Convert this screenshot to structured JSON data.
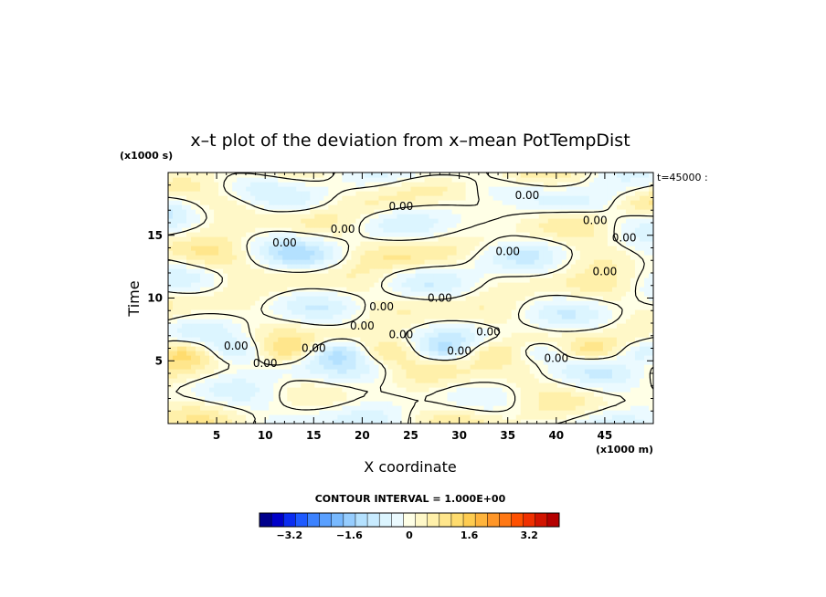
{
  "chart_data": {
    "type": "heatmap",
    "title": "x–t plot of the deviation from x–mean PotTempDist",
    "xlabel": "X coordinate",
    "ylabel": "Time",
    "x_unit": "(x1000 m)",
    "y_unit": "(x1000 s)",
    "time_stamp": "t=45000 :",
    "xlim": [
      0,
      50
    ],
    "ylim": [
      0,
      20
    ],
    "x_ticks": [
      5,
      10,
      15,
      20,
      25,
      30,
      35,
      40,
      45
    ],
    "y_ticks": [
      5,
      10,
      15
    ],
    "contour_interval": "CONTOUR INTERVAL = 1.000E+00",
    "colorbar_ticks": [
      "−3.2",
      "−1.6",
      "0",
      "1.6",
      "3.2"
    ],
    "colorbar_range": [
      -4,
      4
    ],
    "colorbar_colors": [
      "#00008b",
      "#0000c8",
      "#0a2cf0",
      "#1e5aff",
      "#3c82ff",
      "#5aa0ff",
      "#78b9ff",
      "#96cdff",
      "#b4e1ff",
      "#c8ebff",
      "#dcf5ff",
      "#ebfaff",
      "#ffffe6",
      "#fff8c8",
      "#fff0aa",
      "#ffe68c",
      "#ffdc6e",
      "#ffcc50",
      "#ffb43c",
      "#ff9628",
      "#ff7814",
      "#ff5000",
      "#f03000",
      "#d21400",
      "#b40000"
    ],
    "contour_labels": [
      "0.00",
      "0.00",
      "0.00",
      "0.00",
      "0.00",
      "0.00",
      "0.00",
      "0.00",
      "0.00",
      "0.00",
      "0.00",
      "0.00",
      "0.00",
      "0.00",
      "0.00",
      "0.00",
      "0.00",
      "0.00"
    ]
  }
}
